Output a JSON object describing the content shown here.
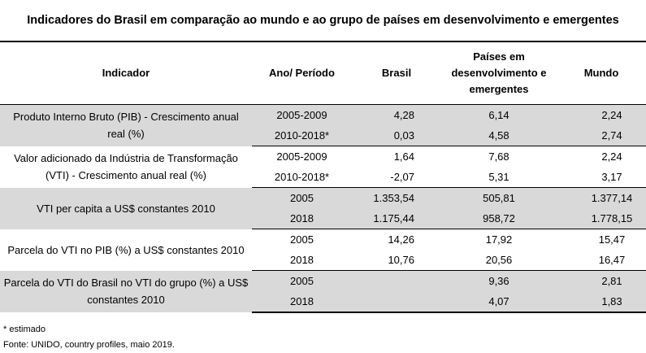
{
  "title": "Indicadores do Brasil em comparação ao mundo e ao grupo de países em desenvolvimento e emergentes",
  "headers": {
    "indicator": "Indicador",
    "period": "Ano/ Período",
    "brasil": "Brasil",
    "emerging": "Países em desenvolvimento e emergentes",
    "world": "Mundo"
  },
  "groups": [
    {
      "indicator": "Produto Interno Bruto (PIB) - Crescimento anual real (%)",
      "rows": [
        {
          "period": "2005-2009",
          "brasil": "4,28",
          "emerging": "6,14",
          "world": "2,24"
        },
        {
          "period": "2010-2018*",
          "brasil": "0,03",
          "emerging": "4,58",
          "world": "2,74"
        }
      ]
    },
    {
      "indicator": "Valor adicionado da Indústria de Transformação (VTI) - Crescimento anual real (%)",
      "rows": [
        {
          "period": "2005-2009",
          "brasil": "1,64",
          "emerging": "7,68",
          "world": "2,24"
        },
        {
          "period": "2010-2018*",
          "brasil": "-2,07",
          "emerging": "5,31",
          "world": "3,17"
        }
      ]
    },
    {
      "indicator": "VTI per capita a US$ constantes 2010",
      "rows": [
        {
          "period": "2005",
          "brasil": "1.353,54",
          "emerging": "505,81",
          "world": "1.377,14"
        },
        {
          "period": "2018",
          "brasil": "1.175,44",
          "emerging": "958,72",
          "world": "1.778,15"
        }
      ]
    },
    {
      "indicator": "Parcela do VTI no PIB (%) a US$ constantes 2010",
      "rows": [
        {
          "period": "2005",
          "brasil": "14,26",
          "emerging": "17,92",
          "world": "15,47"
        },
        {
          "period": "2018",
          "brasil": "10,76",
          "emerging": "20,56",
          "world": "16,47"
        }
      ]
    },
    {
      "indicator": "Parcela do VTI do Brasil no VTI do grupo (%) a US$ constantes 2010",
      "rows": [
        {
          "period": "2005",
          "brasil": "",
          "emerging": "9,36",
          "world": "2,81"
        },
        {
          "period": "2018",
          "brasil": "",
          "emerging": "4,07",
          "world": "1,83"
        }
      ]
    }
  ],
  "notes": {
    "estimated": "* estimado",
    "source": "Fonte: UNIDO, country profiles, maio 2019."
  }
}
